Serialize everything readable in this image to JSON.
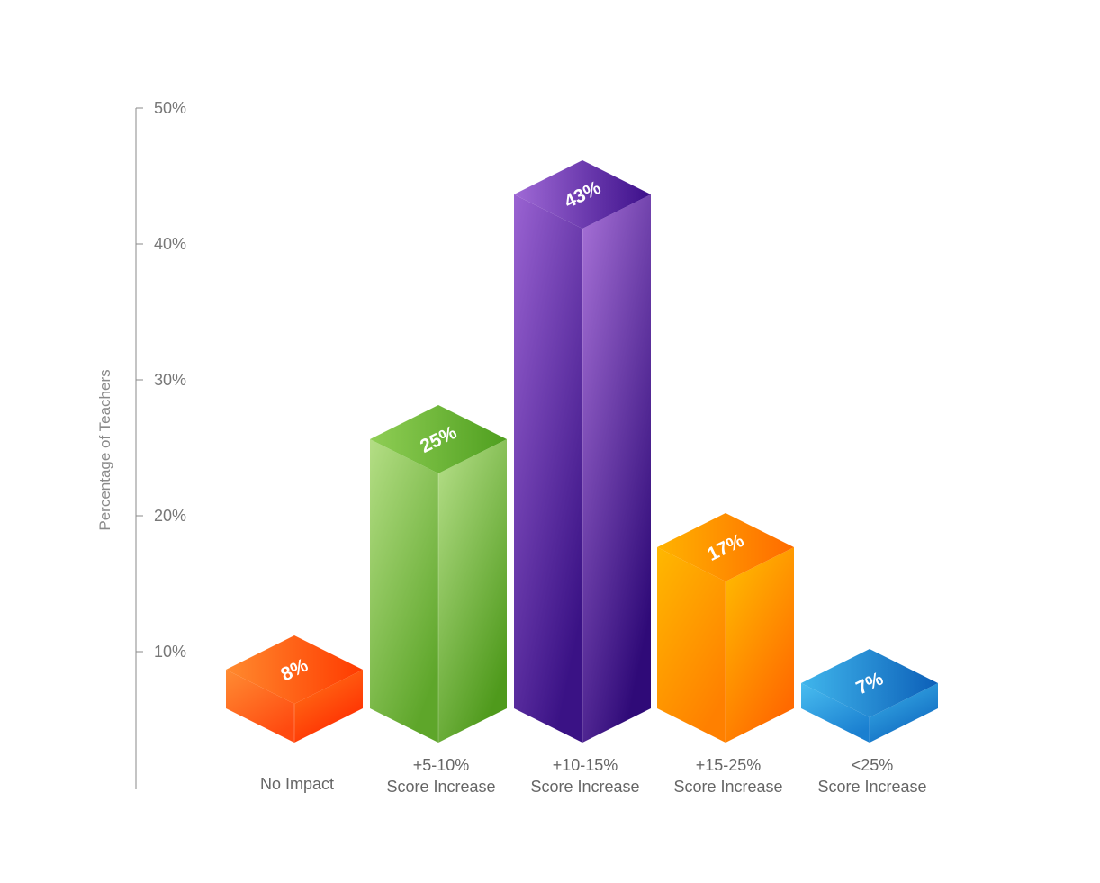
{
  "chart_data": {
    "type": "bar",
    "ylabel": "Percentage of Teachers",
    "ylim": [
      0,
      50
    ],
    "yticks": [
      10,
      20,
      30,
      40,
      50
    ],
    "ytick_labels": [
      "10%",
      "20%",
      "30%",
      "40%",
      "50%"
    ],
    "grid": false,
    "categories": [
      [
        "No Impact"
      ],
      [
        "+5-10%",
        "Score Increase"
      ],
      [
        "+10-15%",
        "Score Increase"
      ],
      [
        "+15-25%",
        "Score Increase"
      ],
      [
        "<25%",
        "Score Increase"
      ]
    ],
    "values": [
      8,
      25,
      43,
      17,
      7
    ],
    "value_labels": [
      "8%",
      "25%",
      "43%",
      "17%",
      "7%"
    ],
    "colors": [
      {
        "top_a": "#ff8a2e",
        "top_b": "#ff3a00",
        "left_a": "#ff8c33",
        "left_b": "#ff4a10",
        "right_a": "#ff7a1a",
        "right_b": "#ff2a00"
      },
      {
        "top_a": "#8fce55",
        "top_b": "#4f9f1f",
        "left_a": "#b4de85",
        "left_b": "#5ea62a",
        "right_a": "#b7e08a",
        "right_b": "#4f9a1c"
      },
      {
        "top_a": "#a06ad6",
        "top_b": "#3c0f8a",
        "left_a": "#9a63d2",
        "left_b": "#3a1285",
        "right_a": "#a872d8",
        "right_b": "#2f0a78"
      },
      {
        "top_a": "#ffb300",
        "top_b": "#ff6a00",
        "left_a": "#ffb800",
        "left_b": "#ff8000",
        "right_a": "#ffc000",
        "right_b": "#ff6a00"
      },
      {
        "top_a": "#40b6ec",
        "top_b": "#0c5fb8",
        "left_a": "#49bdf0",
        "left_b": "#1a7fd0",
        "right_a": "#3cb4ea",
        "right_b": "#0f68c0"
      }
    ]
  }
}
